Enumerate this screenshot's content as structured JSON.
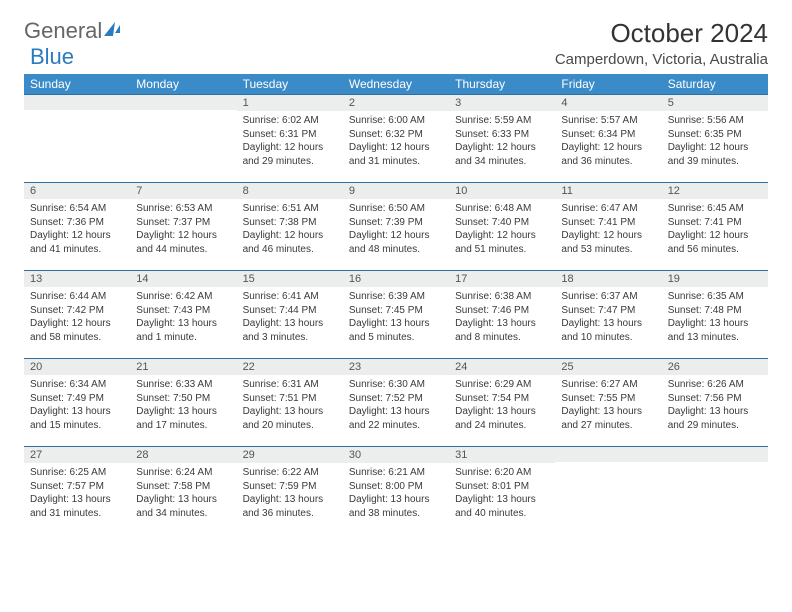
{
  "brand": {
    "part1": "General",
    "part2": "Blue"
  },
  "header": {
    "month_title": "October 2024",
    "location": "Camperdown, Victoria, Australia"
  },
  "styling": {
    "header_bg": "#3b8bc9",
    "header_fg": "#ffffff",
    "daynum_bg": "#eceded",
    "daynum_border_top": "#2e6fa3",
    "body_color": "#3a3a3a",
    "page_bg": "#ffffff",
    "title_fontsize": 26,
    "dayhdr_fontsize": 12,
    "daynum_fontsize": 11,
    "body_fontsize": 10
  },
  "day_headers": [
    "Sunday",
    "Monday",
    "Tuesday",
    "Wednesday",
    "Thursday",
    "Friday",
    "Saturday"
  ],
  "weeks": [
    [
      {
        "n": "",
        "sunrise": "",
        "sunset": "",
        "daylight": ""
      },
      {
        "n": "",
        "sunrise": "",
        "sunset": "",
        "daylight": ""
      },
      {
        "n": "1",
        "sunrise": "Sunrise: 6:02 AM",
        "sunset": "Sunset: 6:31 PM",
        "daylight": "Daylight: 12 hours and 29 minutes."
      },
      {
        "n": "2",
        "sunrise": "Sunrise: 6:00 AM",
        "sunset": "Sunset: 6:32 PM",
        "daylight": "Daylight: 12 hours and 31 minutes."
      },
      {
        "n": "3",
        "sunrise": "Sunrise: 5:59 AM",
        "sunset": "Sunset: 6:33 PM",
        "daylight": "Daylight: 12 hours and 34 minutes."
      },
      {
        "n": "4",
        "sunrise": "Sunrise: 5:57 AM",
        "sunset": "Sunset: 6:34 PM",
        "daylight": "Daylight: 12 hours and 36 minutes."
      },
      {
        "n": "5",
        "sunrise": "Sunrise: 5:56 AM",
        "sunset": "Sunset: 6:35 PM",
        "daylight": "Daylight: 12 hours and 39 minutes."
      }
    ],
    [
      {
        "n": "6",
        "sunrise": "Sunrise: 6:54 AM",
        "sunset": "Sunset: 7:36 PM",
        "daylight": "Daylight: 12 hours and 41 minutes."
      },
      {
        "n": "7",
        "sunrise": "Sunrise: 6:53 AM",
        "sunset": "Sunset: 7:37 PM",
        "daylight": "Daylight: 12 hours and 44 minutes."
      },
      {
        "n": "8",
        "sunrise": "Sunrise: 6:51 AM",
        "sunset": "Sunset: 7:38 PM",
        "daylight": "Daylight: 12 hours and 46 minutes."
      },
      {
        "n": "9",
        "sunrise": "Sunrise: 6:50 AM",
        "sunset": "Sunset: 7:39 PM",
        "daylight": "Daylight: 12 hours and 48 minutes."
      },
      {
        "n": "10",
        "sunrise": "Sunrise: 6:48 AM",
        "sunset": "Sunset: 7:40 PM",
        "daylight": "Daylight: 12 hours and 51 minutes."
      },
      {
        "n": "11",
        "sunrise": "Sunrise: 6:47 AM",
        "sunset": "Sunset: 7:41 PM",
        "daylight": "Daylight: 12 hours and 53 minutes."
      },
      {
        "n": "12",
        "sunrise": "Sunrise: 6:45 AM",
        "sunset": "Sunset: 7:41 PM",
        "daylight": "Daylight: 12 hours and 56 minutes."
      }
    ],
    [
      {
        "n": "13",
        "sunrise": "Sunrise: 6:44 AM",
        "sunset": "Sunset: 7:42 PM",
        "daylight": "Daylight: 12 hours and 58 minutes."
      },
      {
        "n": "14",
        "sunrise": "Sunrise: 6:42 AM",
        "sunset": "Sunset: 7:43 PM",
        "daylight": "Daylight: 13 hours and 1 minute."
      },
      {
        "n": "15",
        "sunrise": "Sunrise: 6:41 AM",
        "sunset": "Sunset: 7:44 PM",
        "daylight": "Daylight: 13 hours and 3 minutes."
      },
      {
        "n": "16",
        "sunrise": "Sunrise: 6:39 AM",
        "sunset": "Sunset: 7:45 PM",
        "daylight": "Daylight: 13 hours and 5 minutes."
      },
      {
        "n": "17",
        "sunrise": "Sunrise: 6:38 AM",
        "sunset": "Sunset: 7:46 PM",
        "daylight": "Daylight: 13 hours and 8 minutes."
      },
      {
        "n": "18",
        "sunrise": "Sunrise: 6:37 AM",
        "sunset": "Sunset: 7:47 PM",
        "daylight": "Daylight: 13 hours and 10 minutes."
      },
      {
        "n": "19",
        "sunrise": "Sunrise: 6:35 AM",
        "sunset": "Sunset: 7:48 PM",
        "daylight": "Daylight: 13 hours and 13 minutes."
      }
    ],
    [
      {
        "n": "20",
        "sunrise": "Sunrise: 6:34 AM",
        "sunset": "Sunset: 7:49 PM",
        "daylight": "Daylight: 13 hours and 15 minutes."
      },
      {
        "n": "21",
        "sunrise": "Sunrise: 6:33 AM",
        "sunset": "Sunset: 7:50 PM",
        "daylight": "Daylight: 13 hours and 17 minutes."
      },
      {
        "n": "22",
        "sunrise": "Sunrise: 6:31 AM",
        "sunset": "Sunset: 7:51 PM",
        "daylight": "Daylight: 13 hours and 20 minutes."
      },
      {
        "n": "23",
        "sunrise": "Sunrise: 6:30 AM",
        "sunset": "Sunset: 7:52 PM",
        "daylight": "Daylight: 13 hours and 22 minutes."
      },
      {
        "n": "24",
        "sunrise": "Sunrise: 6:29 AM",
        "sunset": "Sunset: 7:54 PM",
        "daylight": "Daylight: 13 hours and 24 minutes."
      },
      {
        "n": "25",
        "sunrise": "Sunrise: 6:27 AM",
        "sunset": "Sunset: 7:55 PM",
        "daylight": "Daylight: 13 hours and 27 minutes."
      },
      {
        "n": "26",
        "sunrise": "Sunrise: 6:26 AM",
        "sunset": "Sunset: 7:56 PM",
        "daylight": "Daylight: 13 hours and 29 minutes."
      }
    ],
    [
      {
        "n": "27",
        "sunrise": "Sunrise: 6:25 AM",
        "sunset": "Sunset: 7:57 PM",
        "daylight": "Daylight: 13 hours and 31 minutes."
      },
      {
        "n": "28",
        "sunrise": "Sunrise: 6:24 AM",
        "sunset": "Sunset: 7:58 PM",
        "daylight": "Daylight: 13 hours and 34 minutes."
      },
      {
        "n": "29",
        "sunrise": "Sunrise: 6:22 AM",
        "sunset": "Sunset: 7:59 PM",
        "daylight": "Daylight: 13 hours and 36 minutes."
      },
      {
        "n": "30",
        "sunrise": "Sunrise: 6:21 AM",
        "sunset": "Sunset: 8:00 PM",
        "daylight": "Daylight: 13 hours and 38 minutes."
      },
      {
        "n": "31",
        "sunrise": "Sunrise: 6:20 AM",
        "sunset": "Sunset: 8:01 PM",
        "daylight": "Daylight: 13 hours and 40 minutes."
      },
      {
        "n": "",
        "sunrise": "",
        "sunset": "",
        "daylight": ""
      },
      {
        "n": "",
        "sunrise": "",
        "sunset": "",
        "daylight": ""
      }
    ]
  ]
}
